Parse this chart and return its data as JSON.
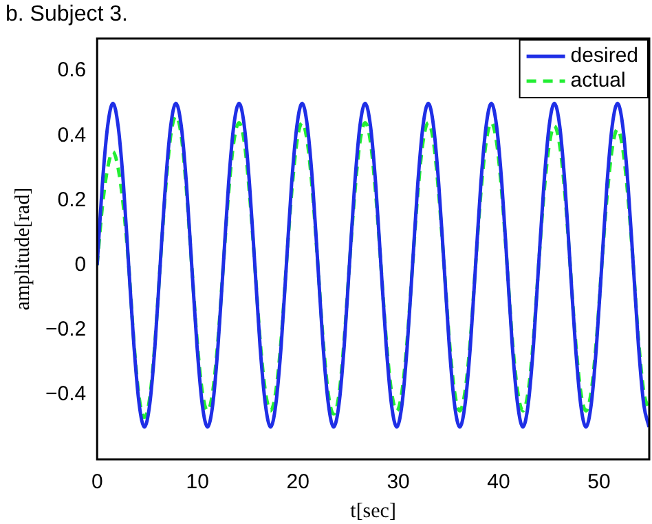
{
  "chart_data": {
    "type": "line",
    "title": "b. Subject 3.",
    "xlabel": "t[sec]",
    "ylabel": "amplitude[rad]",
    "x": [
      0,
      0.52,
      1.05,
      1.57,
      2.09,
      2.62,
      3.14,
      3.67,
      4.19,
      4.71,
      5.24,
      5.76,
      6.28,
      6.81,
      7.33,
      7.85,
      8.38,
      8.9,
      9.42,
      9.95,
      10.47,
      11.0,
      11.52,
      12.04,
      12.57,
      13.09,
      13.61,
      14.14,
      14.66,
      15.18,
      15.71,
      16.23,
      16.76,
      17.28,
      17.8,
      18.33,
      18.85,
      19.37,
      19.9,
      20.42,
      20.94,
      21.47,
      21.99,
      22.51,
      23.04,
      23.56,
      24.09,
      24.61,
      25.13,
      25.66,
      26.18,
      26.7,
      27.23,
      27.75,
      28.27,
      28.8,
      29.32,
      29.85,
      30.37,
      30.89,
      31.42,
      31.94,
      32.46,
      32.99,
      33.51,
      34.03,
      34.56,
      35.08,
      35.6,
      36.13,
      36.65,
      37.18,
      37.7,
      38.22,
      38.75,
      39.27,
      39.79,
      40.32,
      40.84,
      41.36,
      41.89,
      42.41,
      42.94,
      43.46,
      43.98,
      44.51,
      45.03,
      45.55,
      46.08,
      46.6,
      47.12,
      47.65,
      48.17,
      48.69,
      49.22,
      49.74,
      50.27,
      50.79,
      51.31,
      51.84,
      52.36,
      52.88,
      53.41,
      53.93,
      54.45,
      54.98
    ],
    "series": [
      {
        "name": "desired",
        "color": "#1f2fe6",
        "line_style": "solid",
        "values": [
          0,
          0.25,
          0.43,
          0.5,
          0.43,
          0.25,
          0,
          -0.25,
          -0.43,
          -0.5,
          -0.43,
          -0.25,
          0,
          0.25,
          0.43,
          0.5,
          0.43,
          0.25,
          0,
          -0.25,
          -0.43,
          -0.5,
          -0.43,
          -0.25,
          0,
          0.25,
          0.43,
          0.5,
          0.43,
          0.25,
          0,
          -0.25,
          -0.43,
          -0.5,
          -0.43,
          -0.25,
          0,
          0.25,
          0.43,
          0.5,
          0.43,
          0.25,
          0,
          -0.25,
          -0.43,
          -0.5,
          -0.43,
          -0.25,
          0,
          0.25,
          0.43,
          0.5,
          0.43,
          0.25,
          0,
          -0.25,
          -0.43,
          -0.5,
          -0.43,
          -0.25,
          0,
          0.25,
          0.43,
          0.5,
          0.43,
          0.25,
          0,
          -0.25,
          -0.43,
          -0.5,
          -0.43,
          -0.25,
          0,
          0.25,
          0.43,
          0.5,
          0.43,
          0.25,
          0,
          -0.25,
          -0.43,
          -0.5,
          -0.43,
          -0.25,
          0,
          0.25,
          0.43,
          0.5,
          0.43,
          0.25,
          0,
          -0.25,
          -0.43,
          -0.5,
          -0.43,
          -0.25,
          0,
          0.25,
          0.43,
          0.5,
          0.43,
          0.25,
          0,
          -0.25,
          -0.43,
          -0.5
        ]
      },
      {
        "name": "actual",
        "color": "#22ee33",
        "line_style": "dashed",
        "values": [
          0,
          0.18,
          0.3,
          0.35,
          0.3,
          0.18,
          0,
          -0.24,
          -0.41,
          -0.47,
          -0.41,
          -0.24,
          0,
          0.23,
          0.4,
          0.46,
          0.4,
          0.23,
          0,
          -0.23,
          -0.39,
          -0.45,
          -0.39,
          -0.23,
          0,
          0.22,
          0.38,
          0.44,
          0.38,
          0.22,
          0,
          -0.23,
          -0.39,
          -0.45,
          -0.39,
          -0.23,
          0,
          0.22,
          0.38,
          0.44,
          0.38,
          0.22,
          0,
          -0.23,
          -0.4,
          -0.46,
          -0.4,
          -0.23,
          0,
          0.22,
          0.38,
          0.44,
          0.38,
          0.22,
          0,
          -0.23,
          -0.39,
          -0.45,
          -0.39,
          -0.23,
          0,
          0.22,
          0.38,
          0.44,
          0.38,
          0.22,
          0,
          -0.23,
          -0.39,
          -0.45,
          -0.39,
          -0.23,
          0,
          0.22,
          0.38,
          0.44,
          0.38,
          0.22,
          0,
          -0.23,
          -0.39,
          -0.45,
          -0.39,
          -0.23,
          0,
          0.22,
          0.37,
          0.43,
          0.37,
          0.22,
          0,
          -0.23,
          -0.39,
          -0.45,
          -0.39,
          -0.23,
          0,
          0.21,
          0.36,
          0.42,
          0.36,
          0.21,
          0,
          -0.23,
          -0.39,
          -0.45
        ]
      }
    ],
    "xlim": [
      0,
      55
    ],
    "xticks": [
      0,
      10,
      20,
      30,
      40,
      50
    ],
    "ylim": [
      -0.6,
      0.7
    ],
    "yticks": [
      -0.4,
      -0.2,
      0,
      0.2,
      0.4,
      0.6
    ],
    "grid": false,
    "legend": "top right",
    "marker": "none"
  }
}
